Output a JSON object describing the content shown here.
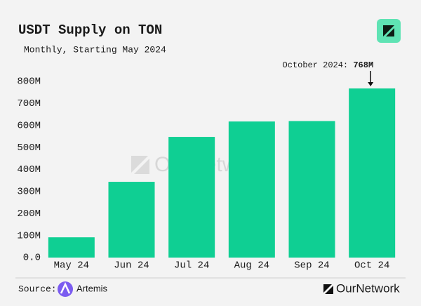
{
  "chart_data": {
    "type": "bar",
    "title": "USDT Supply on TON",
    "subtitle": "Monthly, Starting May 2024",
    "categories": [
      "May 24",
      "Jun 24",
      "Jul 24",
      "Aug 24",
      "Sep 24",
      "Oct 24"
    ],
    "values": [
      92,
      344,
      548,
      618,
      620,
      768
    ],
    "color": "#0fcf93",
    "ylim": [
      0,
      800
    ],
    "yticks": [
      {
        "value": 0,
        "label": "0.0"
      },
      {
        "value": 100,
        "label": "100M"
      },
      {
        "value": 200,
        "label": "200M"
      },
      {
        "value": 300,
        "label": "300M"
      },
      {
        "value": 400,
        "label": "400M"
      },
      {
        "value": 500,
        "label": "500M"
      },
      {
        "value": 600,
        "label": "600M"
      },
      {
        "value": 700,
        "label": "700M"
      },
      {
        "value": 800,
        "label": "800M"
      }
    ],
    "grid": false,
    "annotation": {
      "label": "October 2024:",
      "value_label": "768M"
    }
  },
  "footer": {
    "source_label": "Source:",
    "source": "Artemis",
    "brand": "OurNetwork"
  }
}
